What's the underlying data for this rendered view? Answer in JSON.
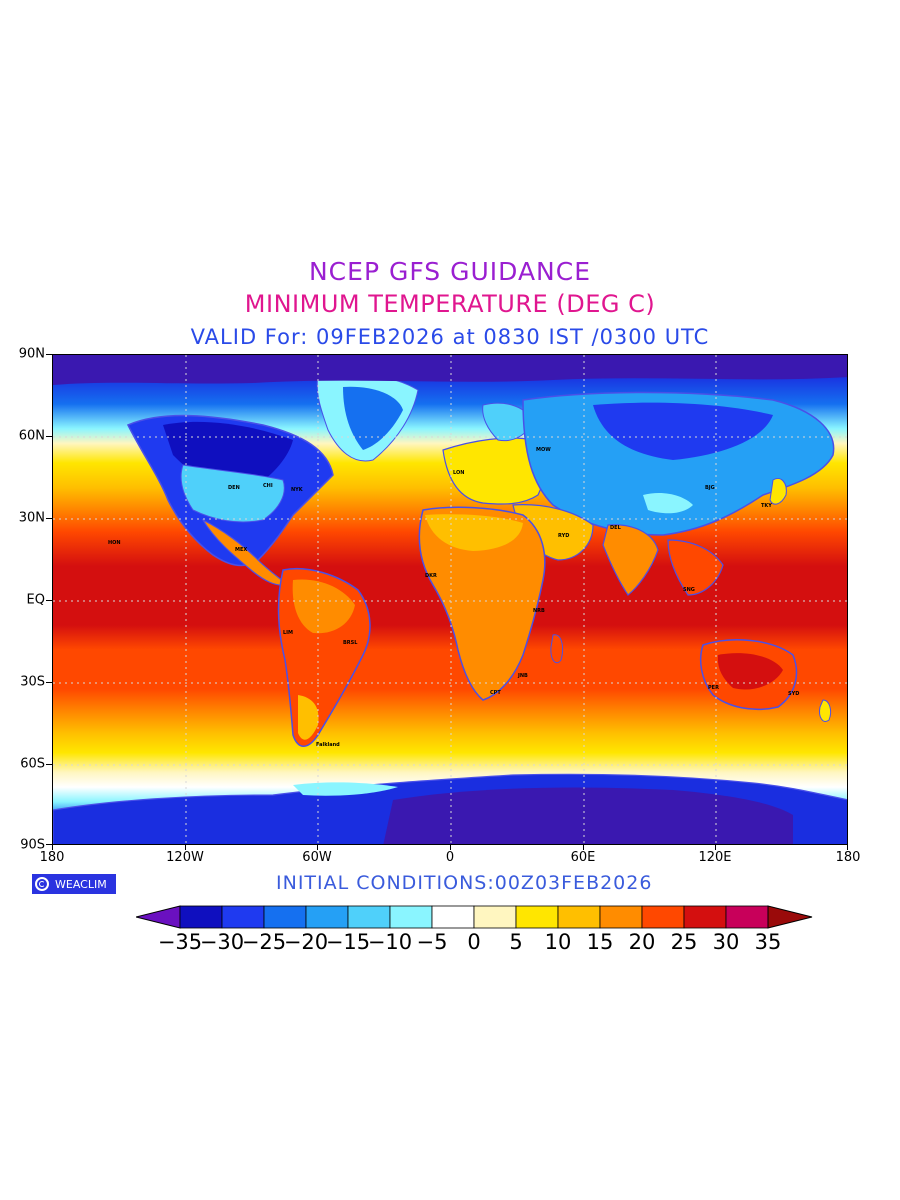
{
  "header": {
    "title": "NCEP GFS GUIDANCE",
    "subtitle": "MINIMUM TEMPERATURE (DEG C)",
    "valid": "VALID For: 09FEB2026 at 0830 IST /0300 UTC"
  },
  "map": {
    "lat_labels": [
      "90N",
      "60N",
      "30N",
      "EQ",
      "30S",
      "60S",
      "90S"
    ],
    "lon_labels": [
      "180",
      "120W",
      "60W",
      "0",
      "60E",
      "120E",
      "180"
    ],
    "lat_range": [
      -90,
      90
    ],
    "lon_range": [
      -180,
      180
    ],
    "grid_lines": "dotted",
    "pacific_label": "HON",
    "falkland_label": "Falkland",
    "city_labels": [
      "NYK",
      "CHI",
      "DEN",
      "MEX",
      "LIM",
      "BRSL",
      "CPT",
      "NRB",
      "MOW",
      "DEL",
      "BJG",
      "TKY",
      "SYD",
      "PER",
      "SNG",
      "RYD",
      "JNB",
      "DKR",
      "LON"
    ]
  },
  "footer": {
    "logo_text": "WEACLIM",
    "initial_conditions": "INITIAL CONDITIONS:00Z03FEB2026"
  },
  "legend": {
    "labels": [
      "−35",
      "−30",
      "−25",
      "−20",
      "−15",
      "−10",
      "−5",
      "0",
      "5",
      "10",
      "15",
      "20",
      "25",
      "30",
      "35"
    ],
    "colors": [
      "#0f0fbf",
      "#1f3af0",
      "#1570f0",
      "#25a0f5",
      "#4fd0fa",
      "#8af5ff",
      "#ffffff",
      "#fff6c0",
      "#ffe600",
      "#ffbf00",
      "#ff8c00",
      "#ff4800",
      "#d40f0f",
      "#c8005a"
    ],
    "under_color": "#6a10c0",
    "over_color": "#9a0a0a"
  },
  "colors": {
    "title": "#9a1fd1",
    "subtitle": "#e0168f",
    "valid": "#2a4ae8",
    "coast": "#4a50e8"
  }
}
